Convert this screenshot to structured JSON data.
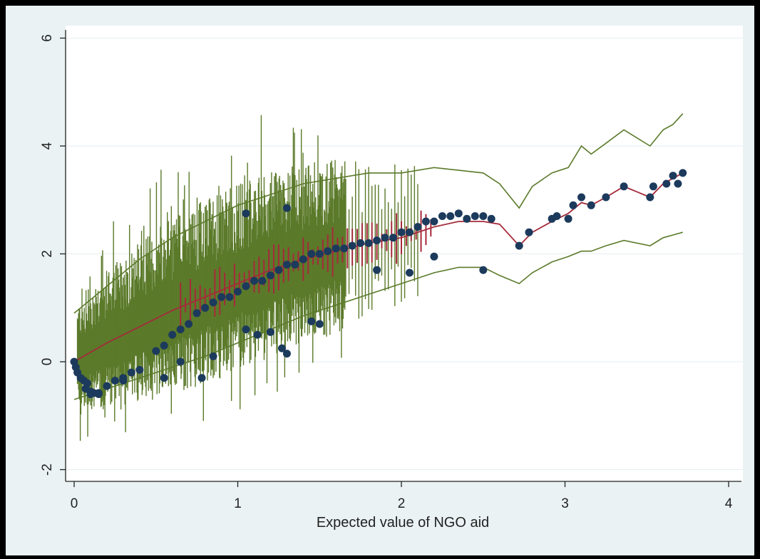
{
  "chart_data": {
    "type": "scatter",
    "title": "",
    "xlabel": "Expected value of NGO aid",
    "ylabel": "",
    "xlim": [
      -0.1,
      4.1
    ],
    "ylim": [
      -2.3,
      6.5
    ],
    "x_ticks": [
      0,
      1,
      2,
      3,
      4
    ],
    "x_tick_labels": [
      "0",
      "1",
      "2",
      "3",
      "4"
    ],
    "y_ticks": [
      -2,
      0,
      2,
      4,
      6
    ],
    "y_tick_labels": [
      "-2",
      "0",
      "2",
      "4",
      "6"
    ],
    "grid": true,
    "legend": "none",
    "colors": {
      "outer_bg": "#000000",
      "panel_bg": "#eaf2f3",
      "plot_bg": "#ffffff",
      "points": "#1c3a5c",
      "fit_line": "#a52a3a",
      "ci_lines": "#5b7a2a",
      "grid": "#e6eef0",
      "axis": "#222222"
    },
    "series": [
      {
        "type": "scatter",
        "x": [
          0.0,
          0.01,
          0.02,
          0.04,
          0.06,
          0.08,
          0.1,
          0.12,
          0.15,
          0.2,
          0.25,
          0.3,
          0.35,
          0.4,
          0.5,
          0.55,
          0.6,
          0.65,
          0.7,
          0.75,
          0.8,
          0.85,
          0.9,
          0.95,
          1.0,
          1.05,
          1.1,
          1.15,
          1.2,
          1.25,
          1.3,
          1.35,
          1.4,
          1.45,
          1.5,
          1.55,
          1.6,
          1.65,
          1.7,
          1.75,
          1.8,
          1.85,
          1.9,
          1.95,
          2.0,
          2.05,
          2.1,
          2.15,
          2.2,
          2.25,
          2.3,
          2.35,
          2.4,
          2.45,
          2.5,
          2.55,
          2.72,
          2.78,
          2.92,
          2.95,
          3.02,
          3.05,
          3.1,
          3.16,
          3.25,
          3.36,
          3.52,
          3.54,
          3.62,
          3.66,
          3.69,
          3.72,
          0.07,
          0.1,
          0.15,
          0.3,
          0.55,
          0.65,
          0.78,
          0.85,
          1.05,
          1.12,
          1.2,
          1.27,
          1.3,
          1.45,
          1.5,
          1.85,
          2.05,
          2.2,
          2.5,
          1.05,
          1.3
        ],
        "y": [
          0.0,
          -0.1,
          -0.2,
          -0.3,
          -0.35,
          -0.4,
          -0.55,
          -0.58,
          -0.6,
          -0.45,
          -0.35,
          -0.3,
          -0.2,
          -0.15,
          0.2,
          0.3,
          0.5,
          0.6,
          0.7,
          0.9,
          1.0,
          1.1,
          1.2,
          1.2,
          1.3,
          1.4,
          1.5,
          1.5,
          1.6,
          1.7,
          1.8,
          1.8,
          1.9,
          2.0,
          2.0,
          2.05,
          2.1,
          2.1,
          2.15,
          2.2,
          2.2,
          2.25,
          2.3,
          2.3,
          2.4,
          2.4,
          2.5,
          2.6,
          2.6,
          2.7,
          2.7,
          2.75,
          2.65,
          2.7,
          2.7,
          2.65,
          2.15,
          2.4,
          2.65,
          2.7,
          2.65,
          2.9,
          3.05,
          2.9,
          3.05,
          3.25,
          3.05,
          3.25,
          3.3,
          3.45,
          3.3,
          3.5,
          -0.5,
          -0.6,
          -0.58,
          -0.35,
          -0.3,
          0.0,
          -0.3,
          0.1,
          0.6,
          0.5,
          0.55,
          0.25,
          0.15,
          0.75,
          0.7,
          1.7,
          1.65,
          1.95,
          1.7,
          2.75,
          2.85
        ]
      },
      {
        "type": "line",
        "name": "",
        "x": [
          0.0,
          0.2,
          0.4,
          0.6,
          0.8,
          1.0,
          1.2,
          1.4,
          1.6,
          1.8,
          2.0,
          2.2,
          2.35,
          2.5,
          2.6,
          2.72,
          2.8,
          2.92,
          3.02,
          3.1,
          3.16,
          3.25,
          3.36,
          3.52,
          3.6,
          3.66,
          3.72
        ],
        "y": [
          0.0,
          0.35,
          0.65,
          0.95,
          1.2,
          1.45,
          1.7,
          1.9,
          2.05,
          2.2,
          2.3,
          2.5,
          2.6,
          2.6,
          2.55,
          2.15,
          2.4,
          2.6,
          2.75,
          2.95,
          2.9,
          3.05,
          3.25,
          3.05,
          3.3,
          3.4,
          3.5
        ]
      },
      {
        "type": "line",
        "name": "",
        "x": [
          0.0,
          0.2,
          0.4,
          0.6,
          0.8,
          1.0,
          1.2,
          1.4,
          1.6,
          1.8,
          2.0,
          2.2,
          2.35,
          2.5,
          2.6,
          2.72,
          2.8,
          2.92,
          3.02,
          3.1,
          3.16,
          3.25,
          3.36,
          3.52,
          3.6,
          3.66,
          3.72
        ],
        "y": [
          0.9,
          1.4,
          1.9,
          2.3,
          2.6,
          2.9,
          3.1,
          3.3,
          3.4,
          3.5,
          3.5,
          3.6,
          3.55,
          3.5,
          3.3,
          2.85,
          3.25,
          3.5,
          3.6,
          4.0,
          3.85,
          4.05,
          4.3,
          4.0,
          4.3,
          4.4,
          4.6
        ]
      },
      {
        "type": "line",
        "name": "",
        "x": [
          0.0,
          0.2,
          0.4,
          0.6,
          0.8,
          1.0,
          1.2,
          1.4,
          1.6,
          1.8,
          2.0,
          2.2,
          2.35,
          2.5,
          2.6,
          2.72,
          2.8,
          2.92,
          3.02,
          3.1,
          3.16,
          3.25,
          3.36,
          3.52,
          3.6,
          3.66,
          3.72
        ],
        "y": [
          -0.7,
          -0.5,
          -0.3,
          -0.1,
          0.1,
          0.35,
          0.6,
          0.85,
          1.05,
          1.25,
          1.45,
          1.65,
          1.75,
          1.75,
          1.6,
          1.45,
          1.65,
          1.85,
          1.95,
          2.05,
          2.05,
          2.15,
          2.25,
          2.15,
          2.3,
          2.35,
          2.4
        ]
      }
    ]
  }
}
